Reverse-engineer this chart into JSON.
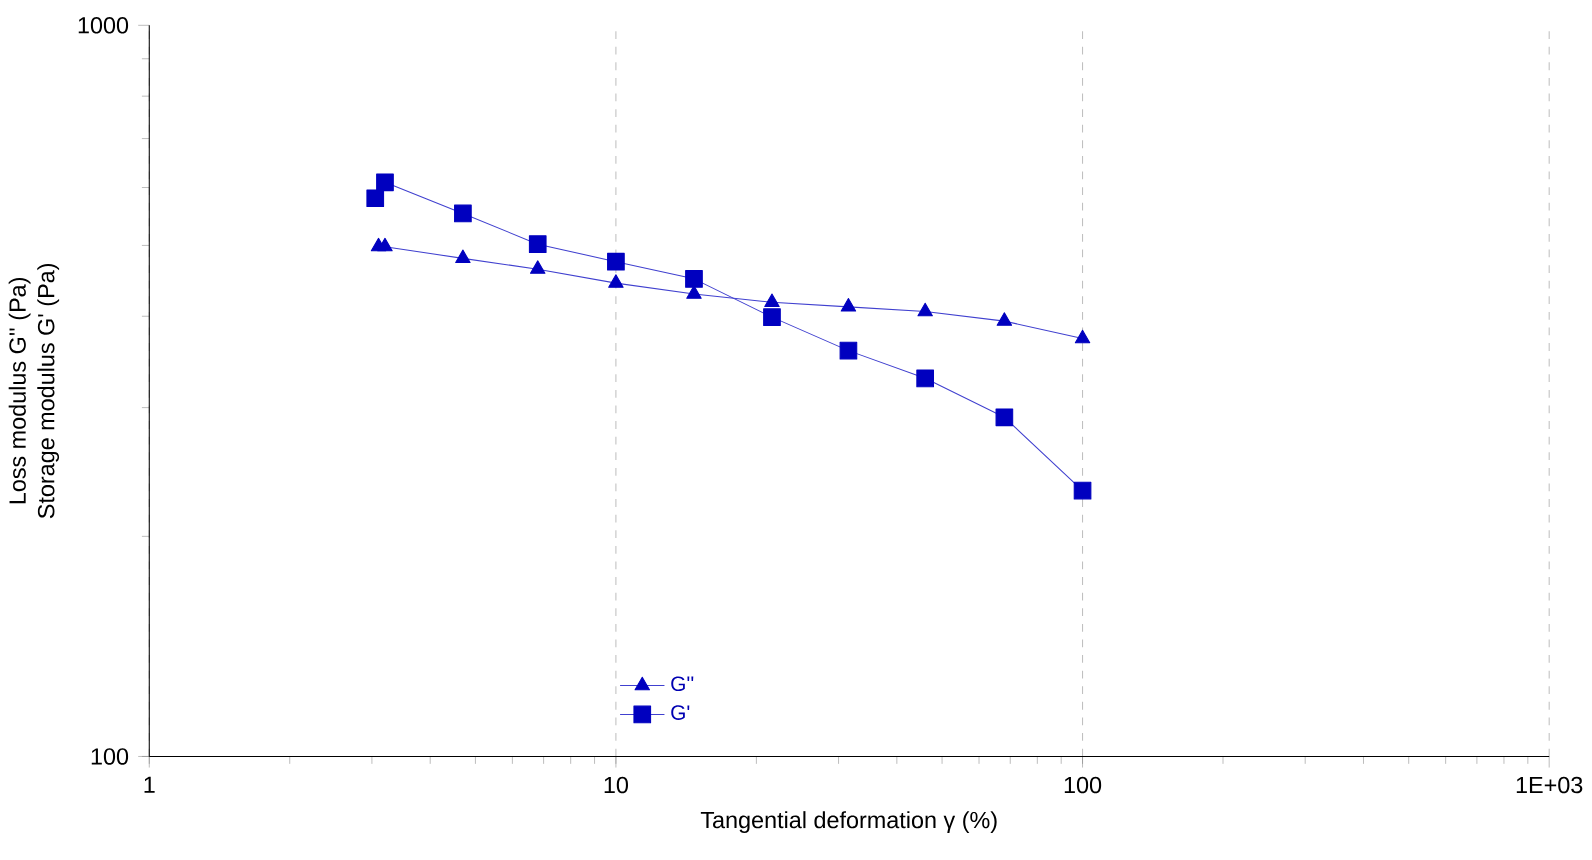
{
  "chart_data": {
    "type": "line",
    "xlabel": "Tangential deformation γ (%)",
    "ylabel": "Loss modulus G'' (Pa)",
    "annotations": [
      "Storage modulus G' (Pa)"
    ],
    "log": "xy",
    "xlim": [
      1,
      1000
    ],
    "ylim": [
      100,
      1000
    ],
    "xticks": [
      1,
      10,
      100,
      {
        "value": 1000,
        "label": "1E+03"
      }
    ],
    "yticks": [
      100,
      1000
    ],
    "grid": "x",
    "legend": "bottom",
    "series": [
      {
        "name": "G''",
        "color": "#0000bf",
        "marker": "triangle",
        "x": [
          3.1,
          3.2,
          4.7,
          6.8,
          10,
          14.7,
          21.6,
          31.5,
          46,
          68,
          100
        ],
        "values": [
          498,
          498,
          480,
          464,
          444,
          429,
          418,
          412,
          406,
          394,
          373
        ]
      },
      {
        "name": "G'",
        "color": "#0000bf",
        "marker": "square",
        "x": [
          3.05,
          3.1,
          3.2,
          4.7,
          6.8,
          10,
          14.7,
          21.6,
          31.5,
          46,
          68,
          100
        ],
        "values": [
          580,
          null,
          610,
          553,
          502,
          475,
          450,
          399,
          359,
          329,
          291,
          231
        ]
      }
    ]
  }
}
